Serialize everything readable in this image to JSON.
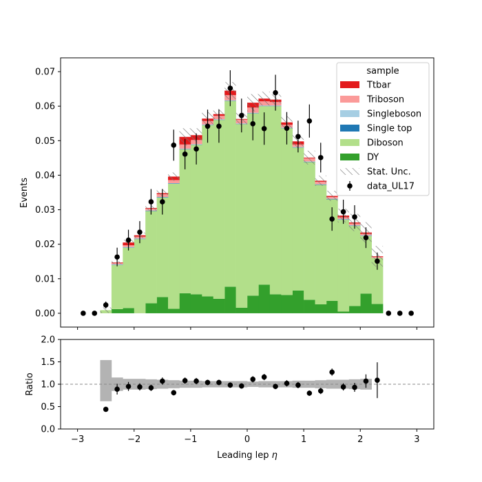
{
  "chart_data": [
    {
      "type": "bar",
      "stacked": true,
      "ylabel": "Events",
      "xlim": [
        -3.3,
        3.3
      ],
      "ylim": [
        -0.004,
        0.074
      ],
      "xticks": [
        -3,
        -2,
        -1,
        0,
        1,
        2,
        3
      ],
      "yticks": [
        0.0,
        0.01,
        0.02,
        0.03,
        0.04,
        0.05,
        0.06,
        0.07
      ],
      "ytick_labels": [
        "0.00",
        "0.01",
        "0.02",
        "0.03",
        "0.04",
        "0.05",
        "0.06",
        "0.07"
      ],
      "bin_edges": [
        -2.6,
        -2.4,
        -2.2,
        -2.0,
        -1.8,
        -1.6,
        -1.4,
        -1.2,
        -1.0,
        -0.8,
        -0.6,
        -0.4,
        -0.2,
        0.0,
        0.2,
        0.4,
        0.6,
        0.8,
        1.0,
        1.2,
        1.4,
        1.6,
        1.8,
        2.0,
        2.2,
        2.4
      ],
      "series": [
        {
          "name": "DY",
          "color": "#33a02c",
          "values": [
            0.0,
            0.0012,
            0.0015,
            0.0,
            0.0029,
            0.0047,
            0.0013,
            0.0058,
            0.0055,
            0.0049,
            0.0042,
            0.0077,
            0.0016,
            0.0051,
            0.0083,
            0.0055,
            0.0053,
            0.0066,
            0.0039,
            0.0026,
            0.0036,
            0.0005,
            0.0021,
            0.0057,
            0.0027
          ]
        },
        {
          "name": "Diboson",
          "color": "#b2df8a",
          "values": [
            0.0009,
            0.0128,
            0.0175,
            0.0215,
            0.0267,
            0.0288,
            0.0362,
            0.0417,
            0.0433,
            0.0496,
            0.0518,
            0.0538,
            0.0532,
            0.0528,
            0.0517,
            0.0545,
            0.0483,
            0.0414,
            0.0399,
            0.0346,
            0.0294,
            0.0266,
            0.0232,
            0.0167,
            0.0133
          ]
        },
        {
          "name": "Single top",
          "color": "#1f78b4",
          "values": [
            0,
            0.0001,
            0.0001,
            0.0001,
            0.0001,
            0.0001,
            0.0001,
            0.0001,
            0.0001,
            0.0001,
            0.0001,
            0.0001,
            0.0001,
            0.0001,
            0.0001,
            0.0001,
            0.0001,
            0.0001,
            0.0001,
            0.0001,
            0.0001,
            0.0001,
            0.0001,
            0.0001,
            0
          ]
        },
        {
          "name": "Singleboson",
          "color": "#a6cee3",
          "values": [
            0,
            0.0001,
            0.0001,
            0.0001,
            0.0001,
            0.0001,
            0.0001,
            0.0001,
            0.0001,
            0.0001,
            0.0001,
            0.0001,
            0.0001,
            0.0001,
            0.0001,
            0.0001,
            0.0001,
            0.0001,
            0.0001,
            0.0001,
            0.0001,
            0.0001,
            0.0001,
            0.0001,
            0
          ]
        },
        {
          "name": "Triboson",
          "color": "#fb9a99",
          "values": [
            0,
            0.0003,
            0.0005,
            0.0005,
            0.0005,
            0.0008,
            0.0009,
            0.0012,
            0.0012,
            0.001,
            0.001,
            0.0015,
            0.0011,
            0.0015,
            0.0012,
            0.001,
            0.0008,
            0.0007,
            0.0009,
            0.0007,
            0.0005,
            0.0005,
            0.0005,
            0.0004,
            0.0003
          ]
        },
        {
          "name": "Ttbar",
          "color": "#e31a1c",
          "values": [
            0,
            0.0002,
            0.0008,
            0.0004,
            0.0002,
            0.0003,
            0.001,
            0.0022,
            0.0014,
            0.0007,
            0.0005,
            0.0013,
            0.0002,
            0.0014,
            0.0008,
            0.0007,
            0.0007,
            0.0009,
            0.0002,
            0.0003,
            0.0003,
            0.0005,
            0.0003,
            0.0004,
            0.0002
          ]
        }
      ],
      "stat_unc": {
        "name": "Stat. Unc.",
        "halfwidth": [
          0.0008,
          0.0004,
          0.0008,
          0.0008,
          0.0008,
          0.001,
          0.0012,
          0.0025,
          0.002,
          0.002,
          0.0015,
          0.0025,
          0.0018,
          0.0025,
          0.002,
          0.0015,
          0.0018,
          0.002,
          0.002,
          0.0015,
          0.0015,
          0.002,
          0.0025,
          0.003,
          0.003
        ]
      },
      "data": {
        "name": "data_UL17",
        "x": [
          -2.9,
          -2.7,
          -2.5,
          -2.3,
          -2.1,
          -1.9,
          -1.7,
          -1.5,
          -1.3,
          -1.1,
          -0.9,
          -0.7,
          -0.5,
          -0.3,
          -0.1,
          0.1,
          0.3,
          0.5,
          0.7,
          0.9,
          1.1,
          1.3,
          1.5,
          1.7,
          1.9,
          2.1,
          2.3,
          2.5,
          2.7,
          2.9
        ],
        "y": [
          0.0,
          0.0,
          0.0024,
          0.0163,
          0.0212,
          0.0235,
          0.0323,
          0.0323,
          0.0487,
          0.0461,
          0.0476,
          0.0542,
          0.0542,
          0.0652,
          0.0573,
          0.0549,
          0.0535,
          0.0639,
          0.0536,
          0.0512,
          0.0557,
          0.0451,
          0.0273,
          0.0294,
          0.0279,
          0.0219,
          0.0151,
          0.0,
          0.0,
          0.0
        ],
        "yerr": [
          0,
          0,
          0.001,
          0.0027,
          0.003,
          0.0032,
          0.0037,
          0.0037,
          0.0045,
          0.0044,
          0.0045,
          0.0048,
          0.0048,
          0.0052,
          0.0049,
          0.0048,
          0.0047,
          0.0052,
          0.0047,
          0.0046,
          0.0048,
          0.0043,
          0.0034,
          0.0035,
          0.0034,
          0.003,
          0.0025,
          0,
          0,
          0
        ]
      },
      "legend": {
        "title": "sample",
        "placement": "top-right",
        "entries": [
          "Ttbar",
          "Triboson",
          "Singleboson",
          "Single top",
          "Diboson",
          "DY",
          "Stat. Unc.",
          "data_UL17"
        ]
      }
    },
    {
      "type": "scatter",
      "xlabel": "Leading lep η",
      "xlabel_text": "Leading lep",
      "xlabel_symbol": "η",
      "ylabel": "Ratio",
      "xlim": [
        -3.3,
        3.3
      ],
      "ylim": [
        0.0,
        2.0
      ],
      "xticks": [
        -3,
        -2,
        -1,
        0,
        1,
        2,
        3
      ],
      "xtick_labels": [
        "−3",
        "−2",
        "−1",
        "0",
        "1",
        "2",
        "3"
      ],
      "yticks": [
        0.0,
        0.5,
        1.0,
        1.5,
        2.0
      ],
      "ytick_labels": [
        "0.0",
        "0.5",
        "1.0",
        "1.5",
        "2.0"
      ],
      "reference_line": 1.0,
      "unc_band": {
        "bin_edges": [
          -2.6,
          -2.4,
          -2.2,
          -2.0,
          -1.8,
          -1.6,
          -1.4,
          -1.2,
          -1.0,
          -0.8,
          -0.6,
          -0.4,
          -0.2,
          0.0,
          0.2,
          0.4,
          0.6,
          0.8,
          1.0,
          1.2,
          1.4,
          1.6,
          1.8,
          2.0,
          2.2
        ],
        "low": [
          0.62,
          0.85,
          0.88,
          0.88,
          0.89,
          0.9,
          0.91,
          0.92,
          0.92,
          0.93,
          0.93,
          0.93,
          0.93,
          0.94,
          0.93,
          0.93,
          0.93,
          0.92,
          0.92,
          0.91,
          0.9,
          0.9,
          0.89,
          0.88
        ],
        "high": [
          1.54,
          1.15,
          1.12,
          1.12,
          1.11,
          1.1,
          1.09,
          1.08,
          1.08,
          1.07,
          1.07,
          1.07,
          1.07,
          1.06,
          1.07,
          1.07,
          1.07,
          1.08,
          1.08,
          1.09,
          1.1,
          1.1,
          1.11,
          1.12
        ]
      },
      "points": {
        "x": [
          -2.5,
          -2.3,
          -2.1,
          -1.9,
          -1.7,
          -1.5,
          -1.3,
          -1.1,
          -0.9,
          -0.7,
          -0.5,
          -0.3,
          -0.1,
          0.1,
          0.3,
          0.5,
          0.7,
          0.9,
          1.1,
          1.3,
          1.5,
          1.7,
          1.9,
          2.1,
          2.3
        ],
        "y": [
          0.44,
          0.89,
          0.95,
          0.94,
          0.92,
          1.07,
          0.81,
          1.08,
          1.07,
          1.04,
          1.04,
          0.98,
          0.96,
          1.11,
          1.16,
          0.95,
          1.02,
          0.98,
          0.8,
          0.85,
          1.27,
          0.94,
          0.93,
          1.07,
          1.09
        ],
        "yerr": [
          0.05,
          0.12,
          0.1,
          0.08,
          0.07,
          0.08,
          0.06,
          0.07,
          0.07,
          0.06,
          0.06,
          0.06,
          0.06,
          0.07,
          0.07,
          0.06,
          0.07,
          0.07,
          0.06,
          0.07,
          0.08,
          0.08,
          0.1,
          0.15,
          0.4
        ]
      }
    }
  ]
}
